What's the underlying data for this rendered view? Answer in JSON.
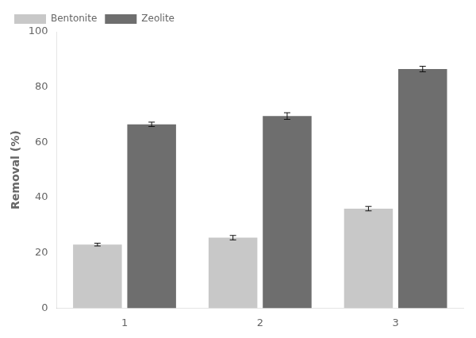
{
  "chart_data": {
    "type": "bar",
    "categories": [
      "1",
      "2",
      "3"
    ],
    "series": [
      {
        "name": "Bentonite",
        "color": "#c8c8c8",
        "values": [
          23.0,
          25.5,
          36.0
        ],
        "errors": [
          0.5,
          0.8,
          0.8
        ]
      },
      {
        "name": "Zeolite",
        "color": "#6e6e6e",
        "values": [
          66.5,
          69.5,
          86.5
        ],
        "errors": [
          0.8,
          1.2,
          1.0
        ]
      }
    ],
    "ylabel": "Removal (%)",
    "ylim": [
      0,
      100
    ],
    "yticks": [
      0,
      20,
      40,
      60,
      80,
      100
    ],
    "grid": false,
    "legend": "upper left"
  }
}
